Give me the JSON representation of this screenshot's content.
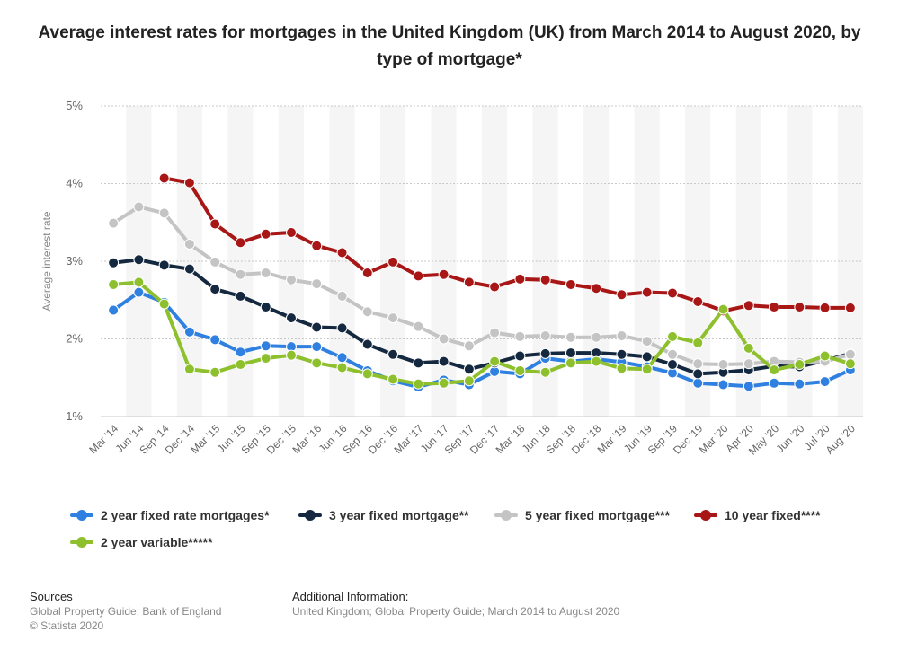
{
  "title": "Average interest rates for mortgages in the United Kingdom (UK) from March 2014 to August 2020, by type of mortgage*",
  "colors": {
    "two_year_fixed": "#2f80e0",
    "three_year_fixed": "#14283f",
    "five_year_fixed": "#c4c4c4",
    "ten_year_fixed": "#a81616",
    "two_year_variable": "#8dc02c"
  },
  "chart_data": {
    "type": "line",
    "ylabel": "Average interest rate",
    "xlabel": "",
    "ylim": [
      1,
      5
    ],
    "yticks": [
      "1%",
      "2%",
      "3%",
      "4%",
      "5%"
    ],
    "grid": "horizontal",
    "legend_position": "bottom",
    "categories": [
      "Mar '14",
      "Jun '14",
      "Sep '14",
      "Dec '14",
      "Mar '15",
      "Jun '15",
      "Sep '15",
      "Dec '15",
      "Mar '16",
      "Jun '16",
      "Sep '16",
      "Dec '16",
      "Mar '17",
      "Jun '17",
      "Sep '17",
      "Dec '17",
      "Mar '18",
      "Jun '18",
      "Sep '18",
      "Dec '18",
      "Mar '19",
      "Jun '19",
      "Sep '19",
      "Dec '19",
      "Mar '20",
      "Apr '20",
      "May '20",
      "Jun '20",
      "Jul '20",
      "Aug '20"
    ],
    "series": [
      {
        "name": "2 year fixed rate mortgages*",
        "color_key": "two_year_fixed",
        "values": [
          2.37,
          2.6,
          2.47,
          2.09,
          1.99,
          1.83,
          1.91,
          1.9,
          1.9,
          1.76,
          1.59,
          1.46,
          1.38,
          1.47,
          1.41,
          1.58,
          1.55,
          1.75,
          1.71,
          1.74,
          1.7,
          1.64,
          1.56,
          1.43,
          1.41,
          1.39,
          1.43,
          1.42,
          1.45,
          1.6
        ]
      },
      {
        "name": "3 year fixed mortgage**",
        "color_key": "three_year_fixed",
        "values": [
          2.98,
          3.02,
          2.95,
          2.9,
          2.64,
          2.55,
          2.41,
          2.27,
          2.15,
          2.14,
          1.93,
          1.8,
          1.69,
          1.71,
          1.61,
          1.69,
          1.78,
          1.81,
          1.82,
          1.82,
          1.8,
          1.77,
          1.67,
          1.55,
          1.57,
          1.6,
          1.65,
          1.64,
          1.72,
          1.81
        ]
      },
      {
        "name": "5 year fixed mortgage***",
        "color_key": "five_year_fixed",
        "values": [
          3.49,
          3.7,
          3.62,
          3.22,
          2.99,
          2.83,
          2.85,
          2.76,
          2.71,
          2.55,
          2.35,
          2.27,
          2.16,
          2.0,
          1.91,
          2.08,
          2.03,
          2.04,
          2.02,
          2.02,
          2.04,
          1.97,
          1.8,
          1.68,
          1.67,
          1.68,
          1.71,
          1.7,
          1.71,
          1.8
        ]
      },
      {
        "name": "10 year fixed****",
        "color_key": "ten_year_fixed",
        "values": [
          null,
          null,
          4.07,
          4.01,
          3.48,
          3.24,
          3.35,
          3.37,
          3.2,
          3.11,
          2.85,
          2.99,
          2.81,
          2.83,
          2.73,
          2.67,
          2.77,
          2.76,
          2.7,
          2.65,
          2.57,
          2.6,
          2.59,
          2.48,
          2.36,
          2.43,
          2.41,
          2.41,
          2.4,
          2.4
        ]
      },
      {
        "name": "2 year variable*****",
        "color_key": "two_year_variable",
        "values": [
          2.7,
          2.73,
          2.45,
          1.61,
          1.57,
          1.67,
          1.75,
          1.79,
          1.69,
          1.63,
          1.55,
          1.48,
          1.42,
          1.43,
          1.46,
          1.71,
          1.59,
          1.57,
          1.69,
          1.71,
          1.62,
          1.61,
          2.03,
          1.95,
          2.38,
          1.88,
          1.6,
          1.67,
          1.78,
          1.68
        ]
      }
    ]
  },
  "legend": [
    {
      "label": "2 year fixed rate mortgages*",
      "color_key": "two_year_fixed"
    },
    {
      "label": "3 year fixed mortgage**",
      "color_key": "three_year_fixed"
    },
    {
      "label": "5 year fixed mortgage***",
      "color_key": "five_year_fixed"
    },
    {
      "label": "10 year fixed****",
      "color_key": "ten_year_fixed"
    },
    {
      "label": "2 year variable*****",
      "color_key": "two_year_variable"
    }
  ],
  "footer": {
    "sources_heading": "Sources",
    "sources_line1": "Global Property Guide; Bank of England",
    "sources_line2": "© Statista 2020",
    "info_heading": "Additional Information:",
    "info_text": "United Kingdom; Global Property Guide; March 2014 to August 2020"
  }
}
